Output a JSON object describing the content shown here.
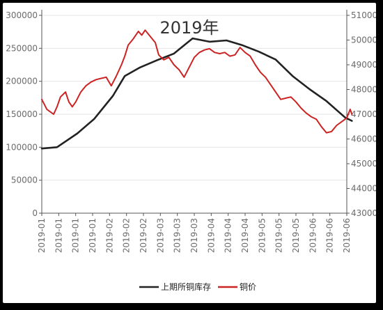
{
  "chart_data": {
    "type": "line",
    "title": "2019年",
    "x_tick_labels": [
      "2019-01",
      "2019-01",
      "2019-01",
      "2019-01",
      "2019-02",
      "2019-02",
      "2019-02",
      "2019-03",
      "2019-03",
      "2019-03",
      "2019-04",
      "2019-04",
      "2019-04",
      "2019-05",
      "2019-05",
      "2019-05",
      "2019-06",
      "2019-06",
      "2019-06"
    ],
    "y_left": {
      "lim": [
        0,
        300000
      ],
      "ticks": [
        0,
        50000,
        100000,
        150000,
        200000,
        250000,
        300000
      ]
    },
    "y_right": {
      "lim": [
        43000,
        51000
      ],
      "ticks": [
        43000,
        44000,
        45000,
        46000,
        47000,
        48000,
        49000,
        50000,
        51000
      ]
    },
    "grid": true,
    "legend_position": "bottom",
    "series": [
      {
        "name": "上期所铜库存",
        "axis": "left",
        "color": "#222222",
        "x": [
          0,
          0.9,
          2.1,
          3.1,
          4.2,
          4.9,
          5.8,
          6.8,
          7.8,
          8.9,
          9.9,
          10.9,
          11.8,
          12.8,
          13.8,
          14.8,
          15.8,
          16.8,
          17.9,
          18.3
        ],
        "values": [
          98000,
          100000,
          121000,
          143000,
          178000,
          208000,
          221000,
          232000,
          242000,
          265000,
          260000,
          262000,
          255000,
          245000,
          233000,
          208000,
          188000,
          170000,
          145000,
          140000
        ]
      },
      {
        "name": "铜价",
        "axis": "right",
        "color": "#cc2222",
        "x": [
          0,
          0.3,
          0.7,
          0.9,
          1.1,
          1.4,
          1.6,
          1.8,
          2.0,
          2.3,
          2.6,
          2.9,
          3.2,
          3.5,
          3.8,
          4.1,
          4.4,
          4.7,
          4.9,
          5.1,
          5.4,
          5.7,
          5.9,
          6.1,
          6.4,
          6.7,
          6.9,
          7.2,
          7.5,
          7.8,
          8.1,
          8.4,
          8.7,
          9.0,
          9.3,
          9.6,
          9.9,
          10.2,
          10.5,
          10.8,
          11.1,
          11.4,
          11.7,
          12.0,
          12.3,
          12.6,
          12.9,
          13.2,
          13.5,
          13.8,
          14.1,
          14.4,
          14.7,
          15.0,
          15.3,
          15.6,
          15.9,
          16.2,
          16.5,
          16.8,
          17.1,
          17.4,
          17.7,
          18.0,
          18.2,
          18.3
        ],
        "values": [
          47600,
          47200,
          47000,
          47300,
          47700,
          47900,
          47500,
          47300,
          47500,
          47900,
          48150,
          48300,
          48400,
          48450,
          48500,
          48150,
          48550,
          49000,
          49350,
          49800,
          50050,
          50350,
          50200,
          50400,
          50150,
          49900,
          49400,
          49200,
          49300,
          49000,
          48800,
          48500,
          48900,
          49300,
          49500,
          49600,
          49650,
          49500,
          49450,
          49500,
          49350,
          49400,
          49700,
          49500,
          49350,
          49000,
          48700,
          48500,
          48200,
          47900,
          47600,
          47650,
          47700,
          47500,
          47250,
          47050,
          46900,
          46800,
          46500,
          46250,
          46300,
          46550,
          46700,
          46850,
          47200,
          47000
        ]
      }
    ]
  }
}
